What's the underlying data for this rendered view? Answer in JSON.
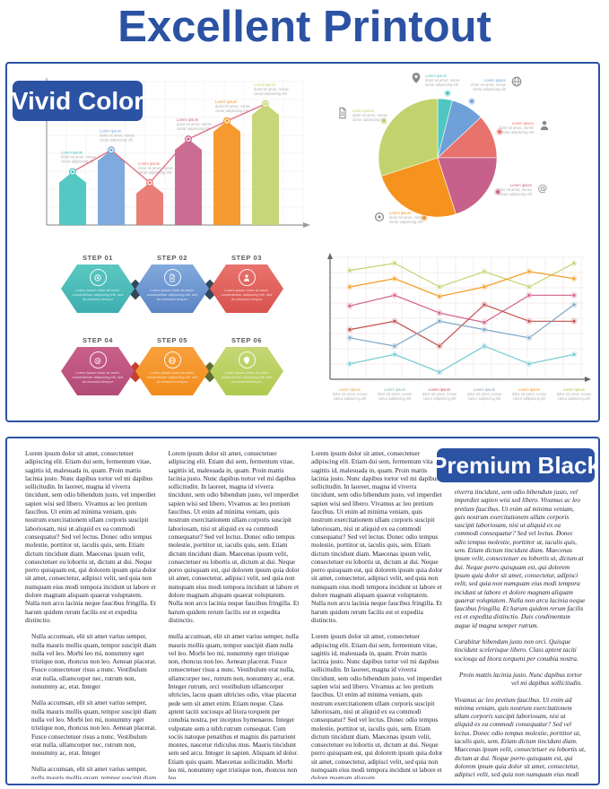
{
  "title": "Excellent Printout",
  "colors": {
    "brand_blue": "#2B52A3",
    "teal": "#45C4BE",
    "blue": "#74A3DB",
    "coral": "#E8736C",
    "pink": "#C7608A",
    "orange": "#F6921E",
    "green": "#C2D36E",
    "dark_navy": "#33475B",
    "dark_red": "#C0504D",
    "caption_gray": "#a9a9a9"
  },
  "vivid": {
    "badge": "Vivid Color",
    "caption_lines": [
      "Lorem ipsum",
      "dolor sit amet, nonse",
      "ctetur adipiscing elit"
    ],
    "steps": {
      "items": [
        {
          "label": "STEP 01",
          "icon": "target-icon",
          "gradient": [
            "#5BC8C0",
            "#3EAEB1"
          ],
          "text": "Lorem ipsum dolor sit amet, consectetuer adipiscing elit, sed do eiusmod tempor"
        },
        {
          "label": "STEP 02",
          "icon": "document-icon",
          "gradient": [
            "#82AADD",
            "#5B84C4"
          ],
          "text": "Lorem ipsum dolor sit amet, consectetuer adipiscing elit, sed do eiusmod tempor"
        },
        {
          "label": "STEP 03",
          "icon": "person-icon",
          "gradient": [
            "#E8736C",
            "#D9534F"
          ],
          "text": "Lorem ipsum dolor sit amet, consectetuer adipiscing elit, sed do eiusmod tempor"
        },
        {
          "label": "STEP 04",
          "icon": "at-icon",
          "gradient": [
            "#C9608A",
            "#B24B77"
          ],
          "text": "Lorem ipsum dolor sit amet, consectetuer adipiscing elit, sed do eiusmod tempor"
        },
        {
          "label": "STEP 05",
          "icon": "globe-icon",
          "gradient": [
            "#F8A03C",
            "#F18C1C"
          ],
          "text": "Lorem ipsum dolor sit amet, consectetuer adipiscing elit, sed do eiusmod tempor"
        },
        {
          "label": "STEP 06",
          "icon": "pin-icon",
          "gradient": [
            "#C6D776",
            "#AFC94E"
          ],
          "text": "Lorem ipsum dolor sit amet, consectetuer adipiscing elit, sed do eiusmod tempor"
        }
      ],
      "connector_colors": [
        "#33475B",
        "#33475B",
        "#C7402E",
        "#5C6B31"
      ]
    }
  },
  "premium": {
    "badge": "Premium Black",
    "columns": [
      {
        "style": "normal",
        "paragraphs": [
          {
            "text": "Lorem ipsum dolor sit amet, consectetuer adipiscing elit. Etiam dui sem, fermentum vitae, sagittis id, malesuada in, quam. Proin mattis lacinia justo. Nunc dapibus tortor vel mi dapibus sollicitudin. In laoreet, magna id viverra tincidunt, sem odio bibendum justo, vel imperdiet sapien wisi sed libero. Vivamus ac leo pretium faucibus. Ut enim ad minima veniam, quis nostrum exercitationem ullam corporis suscipit laboriosam, nisi ut aliquid ex ea commodi consequatur? Sed vel lectus. Donec odio tempus molestie, porttitor ut, iaculis quis, sem. Etiam dictum tincidunt diam. Maecenas ipsum velit, consectetuer eu lobortis ut, dictum at dui. Neque porro quisquam est, qui dolorem ipsum quia dolor sit amet, consectetur, adipisci velit, sed quia non numquam eius modi tempora incidunt ut labore et dolore magnam aliquam quaerat voluptatem. Nulla non arcu lacinia neque faucibus fringilla. Et harum quidem rerum facilis est et expedita distinctio."
          },
          {
            "text": "Nulla accumsan, elit sit amet varius semper, nulla mauris mollis quam, tempor suscipit diam nulla vel leo. Morbi leo mi, nonummy eget tristique non, rhoncus non leo. Aenean placerat. Fusce consectetuer risus a nunc. Vestibulum erat nulla, ullamcorper nec, rutrum non, nonummy ac, erat. Integer",
            "indent": true
          },
          {
            "text": "Nulla accumsan, elit sit amet varius semper, nulla mauris mollis quam, tempor suscipit diam nulla vel leo. Morbi leo mi, nonummy eget tristique non, rhoncus non leo. Aenean placerat. Fusce consectetuer risus a nunc. Vestibulum erat nulla, ullamcorper nec, rutrum non, nonummy ac, erat. Integer",
            "indent": true
          },
          {
            "text": "Nulla accumsan, elit sit amet varius semper, nulla mauris mollis quam, tempor suscipit diam nulla vel leo. Morbi leo mi, nonummy eget tristique non, rhoncus non leo. Aenean placerat. Fusce consectetuer risus a nunc. Vestibulum erat nulla, ullamcorper nec, rutrum non, nonummy ac, erat. Integer",
            "indent": true
          }
        ]
      },
      {
        "style": "normal",
        "paragraphs": [
          {
            "text": "Lorem ipsum dolor sit amet, consectetuer adipiscing elit. Etiam dui sem, fermentum vitae, sagittis id, malesuada in, quam. Proin mattis lacinia justo. Nunc dapibus tortor vel mi dapibus sollicitudin. In laoreet, magna id viverra tincidunt, sem odio bibendum justo, vel imperdiet sapien wisi sed libero. Vivamus ac leo pretium faucibus. Ut enim ad minima veniam, quis nostrum exercitationem ullam corporis suscipit laboriosam, nisi ut aliquid ex ea commodi consequatur? Sed vel lectus. Donec odio tempus molestie, porttitor ut, iaculis quis, sem. Etiam dictum tincidunt diam. Maecenas ipsum velit, consectetuer eu lobortis ut, dictum at dui. Neque porro quisquam est, qui dolorem ipsum quia dolor sit amet, consectetur, adipisci velit, sed quia non numquam eius modi tempora incidunt ut labore et dolore magnam aliquam quaerat voluptatem. Nulla non arcu lacinia neque faucibus fringilla. Et harum quidem rerum facilis est et expedita distinctio."
          },
          {
            "text": "mulla accumsan, elit sit amet varius semper, nulla mauris mollis quam, tempor suscipit diam nulla vel leo. Morbi leo mi, nonummy eget tristique non, rhoncus non leo. Aenean placerat. Fusce consectetuer risus a nunc. Vestibulum erat nulla, ullamcorper nec, rutrum non, nonummy ac, erat. Integer rutrum, orci vestibulum ullamcorper ultricies, lacus quam ultricies odio, vitae placerat pede sem sit amet enim. Etiam neque. Class aptent taciti sociosqu ad litora torquent per conubia nostra, per inceptos hymenaeos. Integer vulputate sem a nibh rutrum consequat. Cum sociis natoque penatibus et magnis dis parturient montes, nascetur ridiculus mus. Mauris tincidunt sem sed arcu. Integer in sapien. Aliquam id dolor. Etiam quis quam. Maecenas sollicitudin. Morbi leo mi, nonummy eget tristique non, rhoncus non leo."
          }
        ]
      },
      {
        "style": "normal",
        "paragraphs": [
          {
            "text": "Lorem ipsum dolor sit amet, consectetuer adipiscing elit. Etiam dui sem, fermentum vitae, sagittis id, malesuada in, quam. Proin mattis lacinia justo. Nunc dapibus tortor vel mi dapibus sollicitudin. In laoreet, magna id viverra tincidunt, sem odio bibendum justo, vel imperdiet sapien wisi sed libero. Vivamus ac leo pretium faucibus. Ut enim ad minima veniam, quis nostrum exercitationem ullam corporis suscipit laboriosam, nisi ut aliquid ex ea commodi consequatur? Sed vel lectus. Donec odio tempus molestie, porttitor ut, iaculis quis, sem. Etiam dictum tincidunt diam. Maecenas ipsum velit, consectetuer eu lobortis ut, dictum at dui. Neque porro quisquam est, qui dolorem ipsum quia dolor sit amet, consectetur, adipisci velit, sed quia non numquam eius modi tempora incidunt ut labore et dolore magnam aliquam quaerat voluptatem. Nulla non arcu lacinia neque faucibus fringilla. Et harum quidem rerum facilis est et expedita distinctio."
          },
          {
            "text": "Lorem ipsum dolor sit amet, consectetuer adipiscing elit. Etiam dui sem, fermentum vitae, sagittis id, malesuada in, quam. Proin mattis lacinia justo. Nunc dapibus tortor vel mi dapibus sollicitudin. In laoreet, magna id viverra tincidunt, sem odio bibendum justo, vel imperdiet sapien wisi sed libero. Vivamus ac leo pretium faucibus. Ut enim ad minima veniam, quis nostrum exercitationem ullam corporis suscipit laboriosam, nisi ut aliquid ex ea commodi consequatur? Sed vel lectus. Donec odio tempus molestie, porttitor ut, iaculis quis, sem. Etiam dictum tincidunt diam. Maecenas ipsum velit, consectetuer eu lobortis ut, dictum at dui. Neque porro quisquam est, qui dolorem ipsum quia dolor sit amet, consectetur, adipisci velit, sed quia non numquam eius modi tempora incidunt ut labore et dolore magnam aliquam."
          }
        ]
      },
      {
        "style": "italic",
        "offset_top": true,
        "paragraphs": [
          {
            "text": "viverra tincidunt, sem odio bibendum justo, vel imperdiet sapien wisi sed libero. Vivamus ac leo pretium faucibus. Ut enim ad minima veniam, quis nostrum exercitationem ullam corporis suscipit laboriosam, nisi ut aliquid ex ea commodi consequatur? Sed vel lectus. Donec odio tempus molestie, porttitor ut, iaculis quis, sem. Etiam dictum tincidunt diam. Maecenas ipsum velit, consectetuer eu lobortis ut, dictum at dui. Neque porro quisquam est, qui dolorem ipsum quia dolor sit amet, consectetur, adipisci velit, sed quia non numquam eius modi tempora incidunt ut labore et dolore magnam aliquam quaerat voluptatem. Nulla non arcu lacinia neque faucibus fringilla. Et harum quidem rerum facilis est et expedita distinctio. Duis condimentum augue id magna semper rutrum."
          },
          {
            "text": "Curabitur bibendum justo non orci. Quisque tincidunt scelerisque libero. Class aptent taciti sociosqu ad litora torquent per conubia nostra."
          },
          {
            "text": "Proin mattis lacinia justo. Nunc dapibus tortor vel mi dapibus sollicitudin.",
            "align": "right"
          },
          {
            "text": "Vivamus ac leo pretium faucibus. Ut enim ad minima veniam, quis nostrum exercitationem ullam corporis suscipit laboriosam, nisi ut aliquid ex ea commodi consequatur? Sed vel lectus. Donec odio tempus molestie, porttitor ut, iaculis quis, sem. Etiam dictum tincidunt diam. Maecenas ipsum velit, consectetuer eu lobortis ut, dictum at dui. Neque porro quisquam est, qui dolorem ipsum quia dolor sit amet, consectetur, adipisci velit, sed quia non numquam eius modi tempora incidunt ut labore et dolore magnam aliquam."
          }
        ]
      }
    ]
  },
  "chart_data": [
    {
      "type": "bar",
      "title": "arrow-bar chart with trend line",
      "values": [
        44,
        62,
        35,
        71,
        86,
        100
      ],
      "colors": [
        "#45C4BE",
        "#74A3DB",
        "#E8736C",
        "#C7608A",
        "#F6921E",
        "#C2D36E"
      ],
      "line_overlay": true,
      "line_color": "#E06A7E",
      "ylim": [
        0,
        100
      ],
      "grid": true
    },
    {
      "type": "pie",
      "title": "pie chart with icon callouts",
      "slices": [
        {
          "label": "Lorem ipsum",
          "pct": 4,
          "color": "#4FC7C0",
          "icon": "pin-icon"
        },
        {
          "label": "Lorem ipsum",
          "pct": 9,
          "color": "#6FA0D8",
          "icon": "globe-icon"
        },
        {
          "label": "Lorem ipsum",
          "pct": 12,
          "color": "#E8736C",
          "icon": "person-icon"
        },
        {
          "label": "Lorem ipsum",
          "pct": 20,
          "color": "#C7608A",
          "icon": "at-icon"
        },
        {
          "label": "Lorem ipsum",
          "pct": 25,
          "color": "#F6921E",
          "icon": "target-icon"
        },
        {
          "label": "Lorem ipsum",
          "pct": 30,
          "color": "#C2D36E",
          "icon": "document-icon"
        }
      ]
    },
    {
      "type": "line",
      "title": "multi-series line chart",
      "x_count": 6,
      "series": [
        {
          "name": "green",
          "color": "#C3D46F",
          "values": [
            92,
            98,
            78,
            91,
            78,
            98
          ]
        },
        {
          "name": "orange",
          "color": "#F59B22",
          "values": [
            78,
            85,
            70,
            78,
            91,
            85
          ]
        },
        {
          "name": "pink",
          "color": "#D4608C",
          "values": [
            62,
            71,
            56,
            48,
            71,
            71
          ]
        },
        {
          "name": "red",
          "color": "#C0504D",
          "values": [
            42,
            49,
            28,
            63,
            49,
            49
          ]
        },
        {
          "name": "blue",
          "color": "#7EA6C8",
          "values": [
            35,
            28,
            49,
            42,
            35,
            63
          ]
        },
        {
          "name": "teal",
          "color": "#6FCBD3",
          "values": [
            13,
            21,
            6,
            28,
            13,
            21
          ]
        }
      ],
      "x_label_colors": [
        "#E8A33D",
        "#7FB5B2",
        "#C0504D",
        "#8A9BB0",
        "#F6921E",
        "#A9C23F"
      ],
      "ylim": [
        0,
        100
      ],
      "grid": true
    }
  ]
}
